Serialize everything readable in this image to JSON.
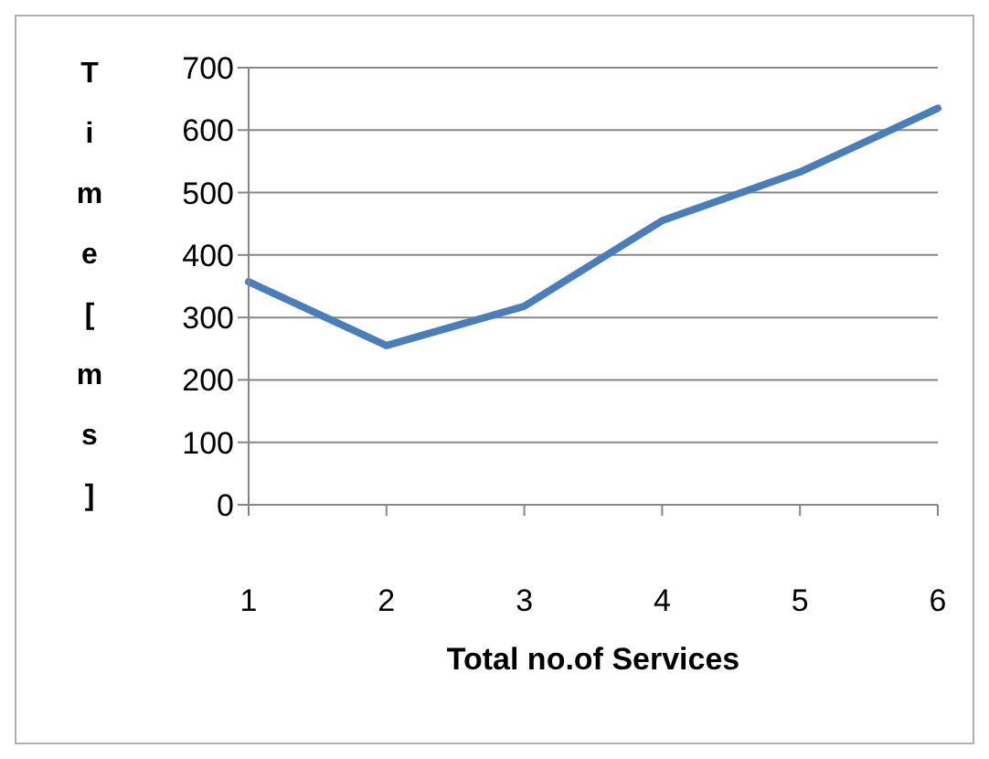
{
  "chart_data": {
    "type": "line",
    "xlabel": "Total no.of Services",
    "ylabel": "Time [ms]",
    "categories": [
      "1",
      "2",
      "3",
      "4",
      "5",
      "6"
    ],
    "series": [
      {
        "color": "#4a7ebb",
        "values": [
          357,
          255,
          318,
          455,
          533,
          635
        ]
      }
    ],
    "ylim": [
      0,
      700
    ],
    "yticks": [
      0,
      100,
      200,
      300,
      400,
      500,
      600,
      700
    ],
    "grid": "y",
    "legend": false,
    "marker": "none",
    "line_style": "solid"
  }
}
